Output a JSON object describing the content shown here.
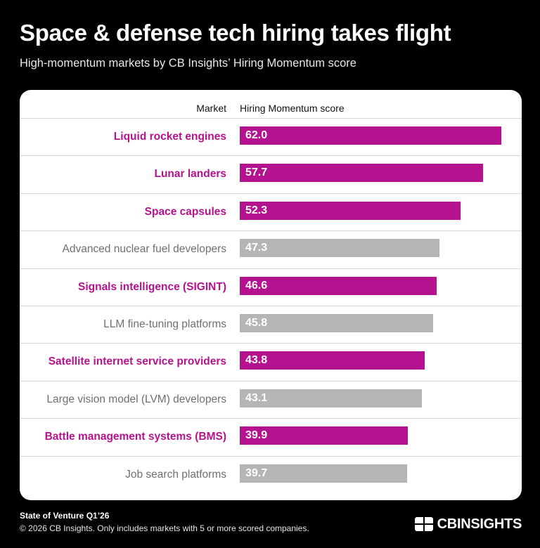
{
  "header": {
    "title": "Space & defense tech hiring takes flight",
    "subtitle": "High-momentum markets by CB Insights’ Hiring Momentum score"
  },
  "colors": {
    "highlight": "#b5128f",
    "neutral": "#b5b5b5",
    "highlight_label": "#b5128f",
    "neutral_label": "#6f6f6f"
  },
  "chart_data": {
    "type": "bar",
    "orientation": "horizontal",
    "column_headers": {
      "market": "Market",
      "score": "Hiring Momentum score"
    },
    "xlim": [
      0,
      62
    ],
    "grid": false,
    "legend": "none",
    "categories": [
      "Liquid rocket engines",
      "Lunar landers",
      "Space capsules",
      "Advanced nuclear fuel developers",
      "Signals intelligence (SIGINT)",
      "LLM fine-tuning platforms",
      "Satellite internet service providers",
      "Large vision model (LVM) developers",
      "Battle management systems (BMS)",
      "Job search platforms"
    ],
    "values": [
      62.0,
      57.7,
      52.3,
      47.3,
      46.6,
      45.8,
      43.8,
      43.1,
      39.9,
      39.7
    ],
    "value_labels": [
      "62.0",
      "57.7",
      "52.3",
      "47.3",
      "46.6",
      "45.8",
      "43.8",
      "43.1",
      "39.9",
      "39.7"
    ],
    "highlighted": [
      true,
      true,
      true,
      false,
      true,
      false,
      true,
      false,
      true,
      false
    ]
  },
  "footer": {
    "source": "State of Venture Q1’26",
    "note": "© 2026 CB Insights. Only includes markets with 5 or more scored companies.",
    "brand": "CBINSIGHTS"
  }
}
